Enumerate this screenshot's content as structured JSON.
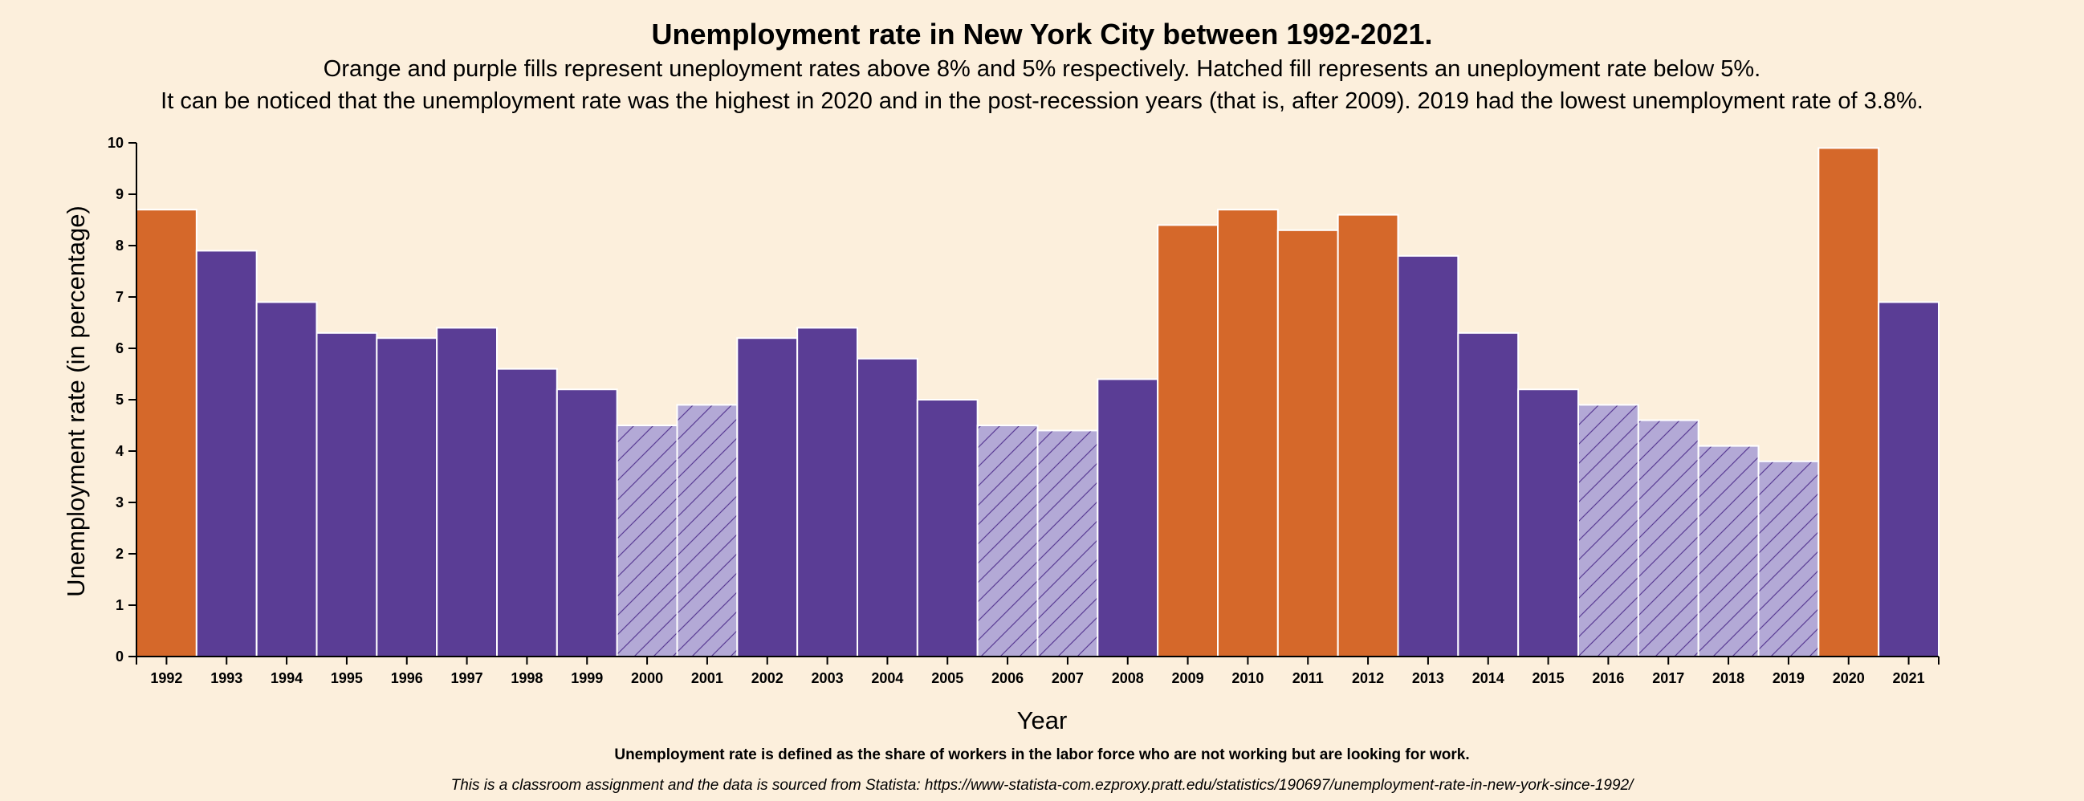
{
  "colors": {
    "background": "#fcefdc",
    "orange": "#d5682a",
    "purple": "#5a3d95",
    "hatch_fill": "#b3a9d6",
    "hatch_line": "#5a3d95",
    "bar_stroke": "#ffffff"
  },
  "chart_data": {
    "type": "bar",
    "title": "Unemployment rate in New York City between 1992-2021.",
    "subtitle": [
      "Orange and purple fills represent uneployment rates above 8% and 5% respectively. Hatched fill represents an uneployment rate below 5%.",
      "It can be noticed that the unemployment rate was the highest in 2020 and in the post-recession years (that is, after 2009). 2019 had the lowest unemployment rate of 3.8%."
    ],
    "xlabel": "Year",
    "ylabel": "Unemployment rate (in percentage)",
    "ylim": [
      0,
      10
    ],
    "yticks": [
      0,
      1,
      2,
      3,
      4,
      5,
      6,
      7,
      8,
      9,
      10
    ],
    "categories": [
      "1992",
      "1993",
      "1994",
      "1995",
      "1996",
      "1997",
      "1998",
      "1999",
      "2000",
      "2001",
      "2002",
      "2003",
      "2004",
      "2005",
      "2006",
      "2007",
      "2008",
      "2009",
      "2010",
      "2011",
      "2012",
      "2013",
      "2014",
      "2015",
      "2016",
      "2017",
      "2018",
      "2019",
      "2020",
      "2021"
    ],
    "values": [
      8.7,
      7.9,
      6.9,
      6.3,
      6.2,
      6.4,
      5.6,
      5.2,
      4.5,
      4.9,
      6.2,
      6.4,
      5.8,
      5.0,
      4.5,
      4.4,
      5.4,
      8.4,
      8.7,
      8.3,
      8.6,
      7.8,
      6.3,
      5.2,
      4.9,
      4.6,
      4.1,
      3.8,
      9.9,
      6.9
    ],
    "grid": false,
    "legend": "none",
    "thresholds": {
      "orange_above": 8,
      "hatched_below": 5
    }
  },
  "footer": {
    "note": "Unemployment rate is defined as the share of workers in the labor force who are not working but are looking for work.",
    "source": "This is a classroom assignment and the data is sourced from Statista: https://www-statista-com.ezproxy.pratt.edu/statistics/190697/unemployment-rate-in-new-york-since-1992/"
  }
}
